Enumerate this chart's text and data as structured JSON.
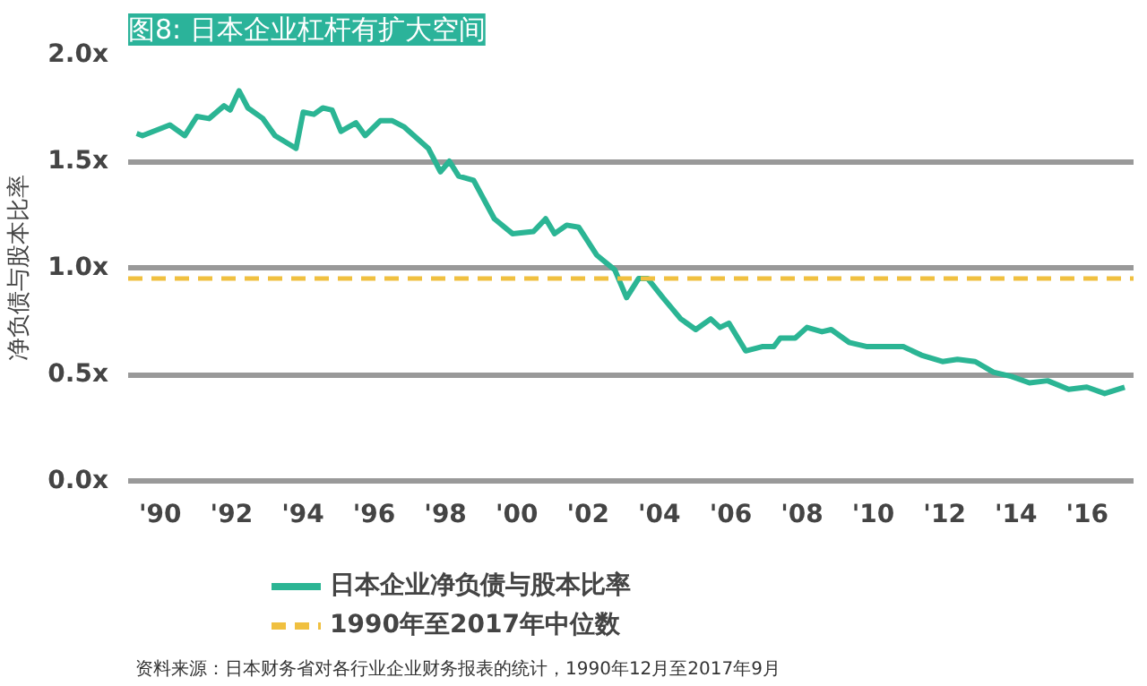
{
  "chart_data": {
    "type": "line",
    "title": "图8: 日本企业杠杆有扩大空间",
    "ylabel": "净负债与股本比率",
    "x": [
      1989.34,
      1989.5,
      1990.27,
      1990.69,
      1991.03,
      1991.37,
      1991.79,
      1991.96,
      1992.21,
      1992.46,
      1992.88,
      1993.22,
      1993.81,
      1994.01,
      1994.31,
      1994.56,
      1994.82,
      1995.07,
      1995.49,
      1995.75,
      1996.17,
      1996.51,
      1996.85,
      1997.52,
      1997.86,
      1998.11,
      1998.37,
      1998.79,
      1999.37,
      1999.88,
      2000.47,
      2000.81,
      2001.06,
      2001.4,
      2001.74,
      2002.24,
      2002.75,
      2003.08,
      2003.42,
      2003.67,
      2004.1,
      2004.6,
      2005.02,
      2005.44,
      2005.7,
      2005.95,
      2006.42,
      2006.88,
      2007.21,
      2007.39,
      2007.81,
      2008.14,
      2008.56,
      2008.82,
      2009.32,
      2009.83,
      2010.33,
      2010.84,
      2011.35,
      2011.94,
      2012.36,
      2012.86,
      2013.37,
      2013.88,
      2014.38,
      2014.89,
      2015.48,
      2015.99,
      2016.49,
      2017.05
    ],
    "series": [
      {
        "name": "日本企业净负债与股本比率",
        "color": "#2bb594",
        "values": [
          1.63,
          1.62,
          1.67,
          1.62,
          1.71,
          1.7,
          1.76,
          1.74,
          1.83,
          1.75,
          1.7,
          1.62,
          1.56,
          1.73,
          1.72,
          1.75,
          1.74,
          1.64,
          1.68,
          1.62,
          1.69,
          1.69,
          1.66,
          1.56,
          1.45,
          1.5,
          1.43,
          1.41,
          1.23,
          1.16,
          1.17,
          1.23,
          1.16,
          1.2,
          1.19,
          1.06,
          0.99,
          0.86,
          0.95,
          0.95,
          0.86,
          0.76,
          0.71,
          0.76,
          0.72,
          0.74,
          0.61,
          0.63,
          0.63,
          0.67,
          0.67,
          0.72,
          0.7,
          0.71,
          0.65,
          0.63,
          0.63,
          0.63,
          0.59,
          0.56,
          0.57,
          0.56,
          0.51,
          0.49,
          0.46,
          0.47,
          0.43,
          0.44,
          0.41,
          0.44
        ]
      }
    ],
    "ref_lines": [
      {
        "axis": "y",
        "value": 0.95,
        "label": "1990年至2017年中位数",
        "color": "#f0c040",
        "line_style": "dashed"
      }
    ],
    "xlim": [
      1989.1,
      2017.3
    ],
    "xticks": [
      {
        "value": 1990,
        "label": "'90"
      },
      {
        "value": 1992,
        "label": "'92"
      },
      {
        "value": 1994,
        "label": "'94"
      },
      {
        "value": 1996,
        "label": "'96"
      },
      {
        "value": 1998,
        "label": "'98"
      },
      {
        "value": 2000,
        "label": "'00"
      },
      {
        "value": 2002,
        "label": "'02"
      },
      {
        "value": 2004,
        "label": "'04"
      },
      {
        "value": 2006,
        "label": "'06"
      },
      {
        "value": 2008,
        "label": "'08"
      },
      {
        "value": 2010,
        "label": "'10"
      },
      {
        "value": 2012,
        "label": "'12"
      },
      {
        "value": 2014,
        "label": "'14"
      },
      {
        "value": 2016,
        "label": "'16"
      }
    ],
    "ylim": [
      0,
      2
    ],
    "yticks": [
      {
        "value": 0,
        "label": "0.0x"
      },
      {
        "value": 0.5,
        "label": "0.5x"
      },
      {
        "value": 1,
        "label": "1.0x"
      },
      {
        "value": 1.5,
        "label": "1.5x"
      },
      {
        "value": 2,
        "label": "2.0x"
      }
    ],
    "grid": "y",
    "legend": "bottom",
    "marker": "none",
    "line_style": "solid",
    "annotations": [
      "资料来源：日本财务省对各行业企业财务报表的统计，1990年12月至2017年9月"
    ]
  }
}
